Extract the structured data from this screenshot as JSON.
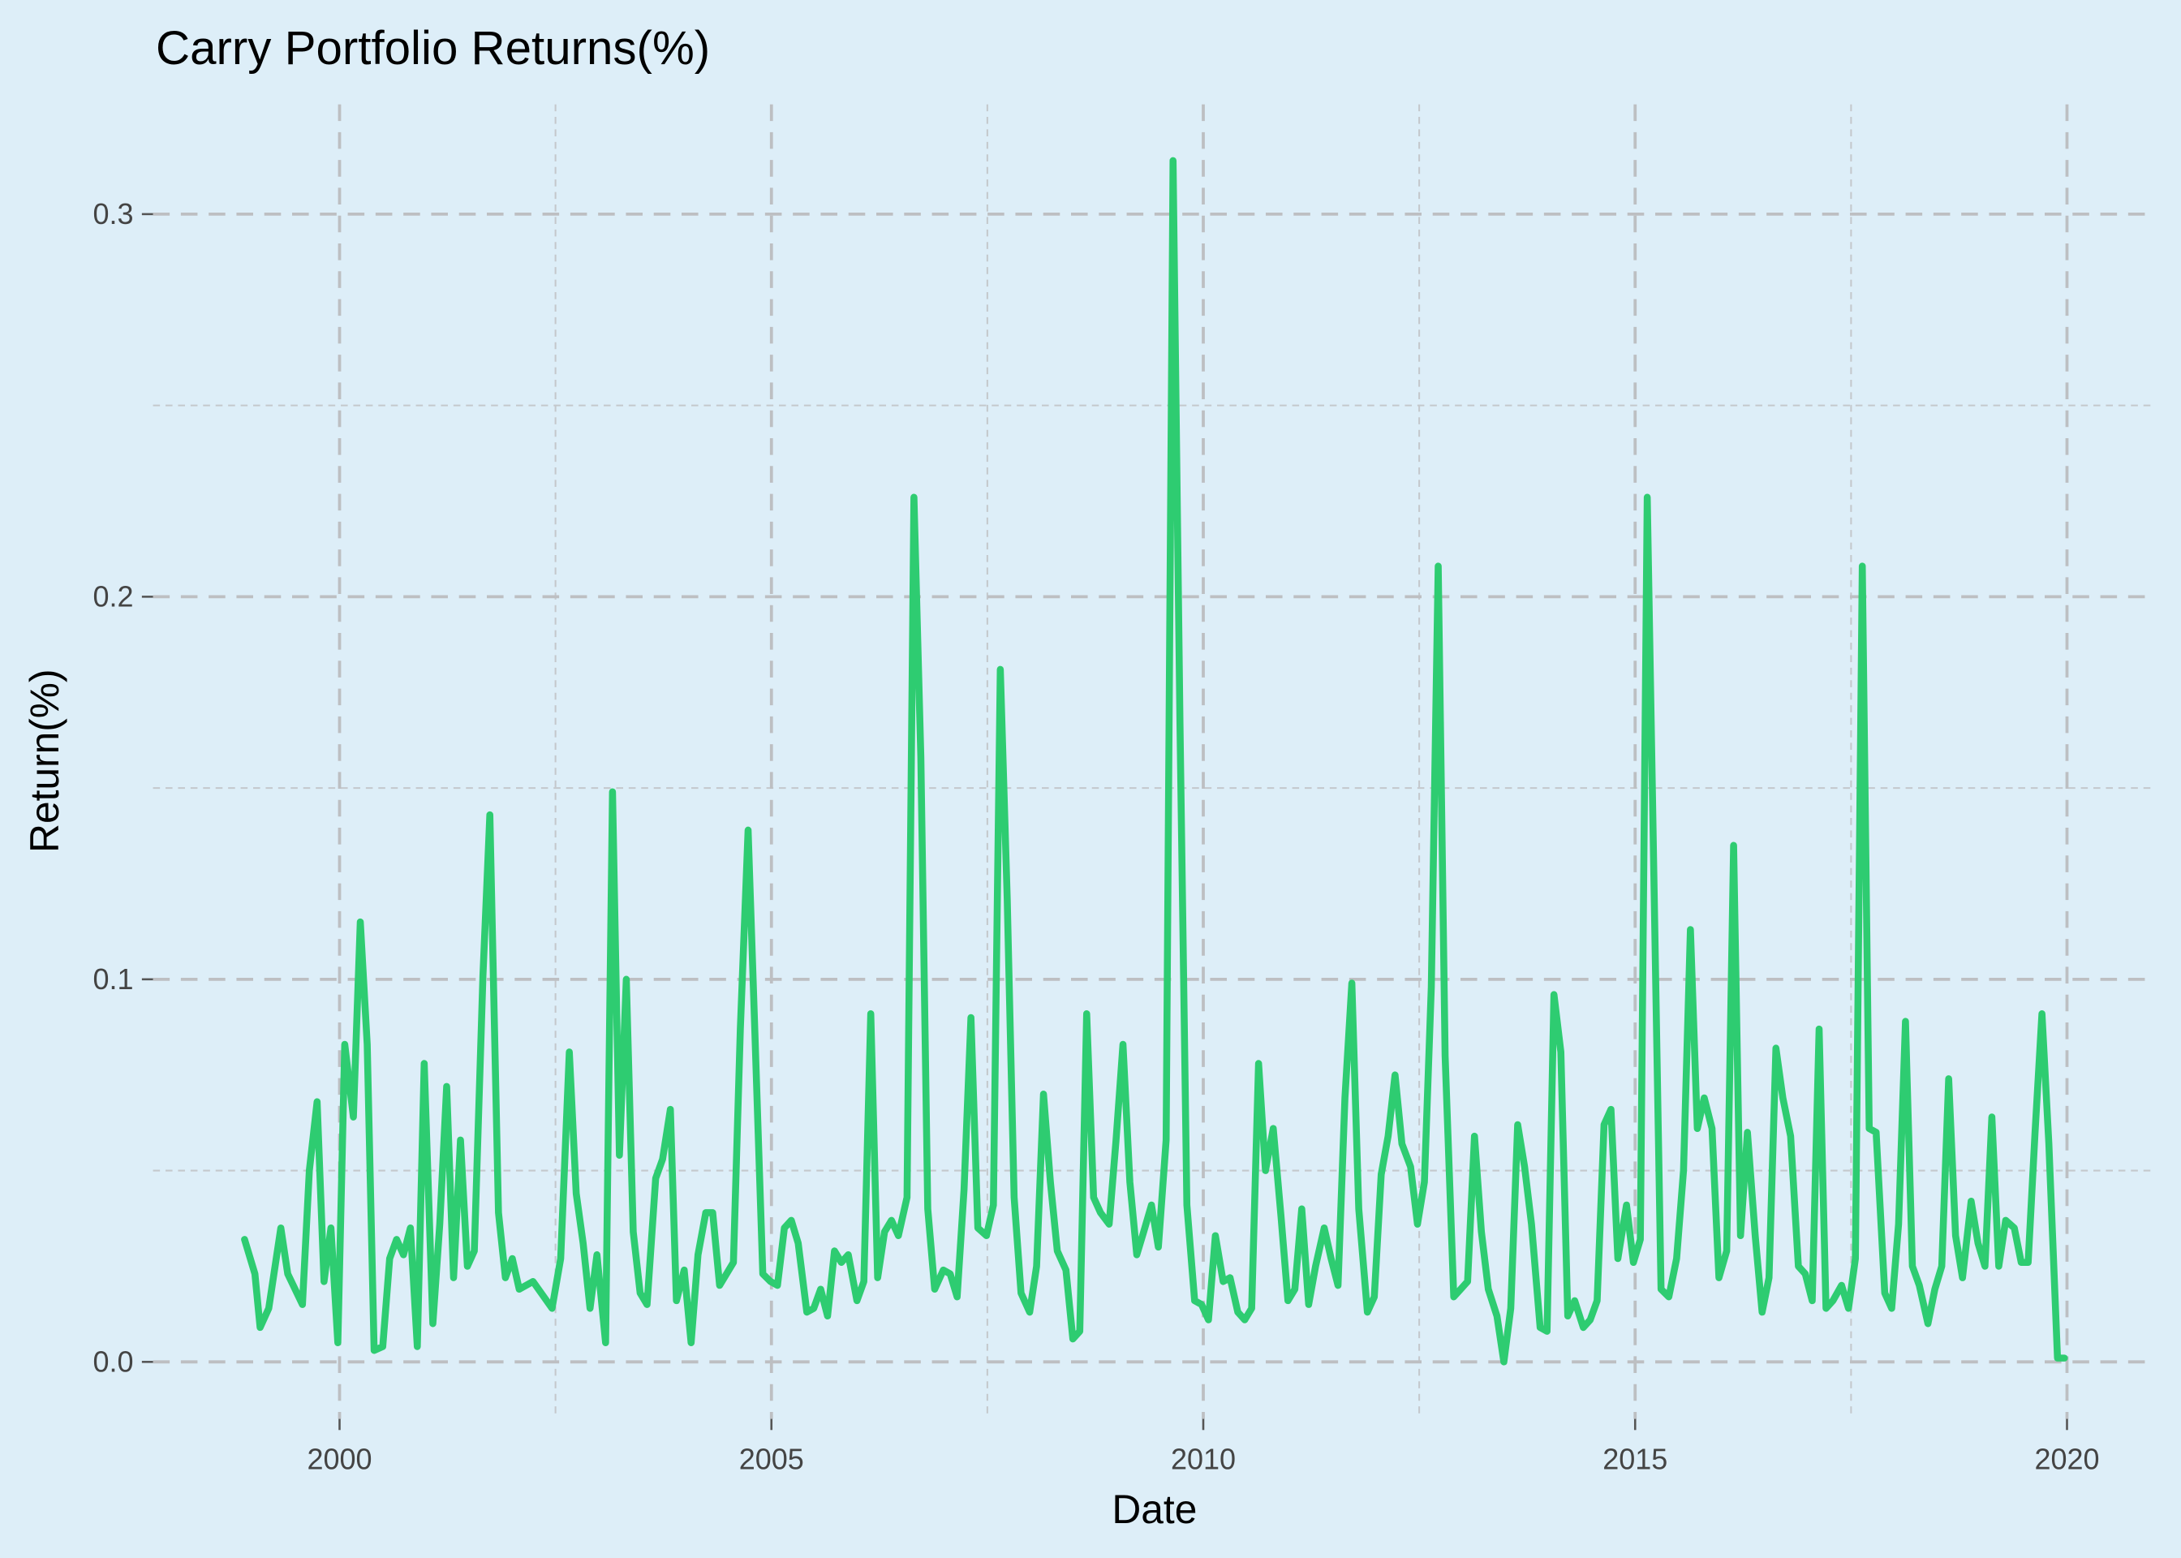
{
  "chart_data": {
    "type": "line",
    "title": "Carry Portfolio Returns(%)",
    "x_label": "Date",
    "y_label": "Return(%)",
    "xlim": [
      1997.84,
      2021.03
    ],
    "ylim": [
      -0.0149,
      0.3287
    ],
    "xticks": [
      2000,
      2005,
      2010,
      2015,
      2020
    ],
    "yticks": [
      {
        "value": 0,
        "label": "0.0"
      },
      0.1,
      0.2,
      0.3
    ],
    "grid": true,
    "x": [
      1998.9,
      1999.02,
      1999.08,
      1999.18,
      1999.32,
      1999.4,
      1999.57,
      1999.65,
      1999.74,
      1999.82,
      1999.9,
      1999.98,
      2000.06,
      2000.16,
      2000.24,
      2000.32,
      2000.4,
      2000.5,
      2000.58,
      2000.66,
      2000.74,
      2000.82,
      2000.9,
      2000.98,
      2001.08,
      2001.16,
      2001.24,
      2001.32,
      2001.4,
      2001.48,
      2001.56,
      2001.66,
      2001.74,
      2001.84,
      2001.92,
      2002.0,
      2002.08,
      2002.24,
      2002.46,
      2002.56,
      2002.66,
      2002.74,
      2002.82,
      2002.9,
      2002.98,
      2003.08,
      2003.16,
      2003.24,
      2003.32,
      2003.4,
      2003.48,
      2003.56,
      2003.66,
      2003.74,
      2003.83,
      2003.9,
      2003.99,
      2004.07,
      2004.15,
      2004.24,
      2004.32,
      2004.4,
      2004.56,
      2004.64,
      2004.73,
      2004.81,
      2004.9,
      2004.99,
      2005.07,
      2005.15,
      2005.23,
      2005.31,
      2005.41,
      2005.49,
      2005.57,
      2005.65,
      2005.73,
      2005.81,
      2005.89,
      2005.99,
      2006.07,
      2006.15,
      2006.23,
      2006.31,
      2006.39,
      2006.47,
      2006.57,
      2006.65,
      2006.73,
      2006.81,
      2006.89,
      2006.99,
      2007.07,
      2007.15,
      2007.23,
      2007.31,
      2007.39,
      2007.49,
      2007.57,
      2007.65,
      2007.73,
      2007.81,
      2007.89,
      2007.99,
      2008.07,
      2008.15,
      2008.23,
      2008.31,
      2008.41,
      2008.49,
      2008.57,
      2008.65,
      2008.73,
      2008.81,
      2008.91,
      2008.99,
      2009.07,
      2009.15,
      2009.23,
      2009.31,
      2009.4,
      2009.48,
      2009.57,
      2009.65,
      2009.73,
      2009.81,
      2009.9,
      2009.98,
      2010.06,
      2010.14,
      2010.23,
      2010.31,
      2010.4,
      2010.48,
      2010.56,
      2010.64,
      2010.72,
      2010.81,
      2010.9,
      2010.98,
      2011.06,
      2011.14,
      2011.22,
      2011.3,
      2011.4,
      2011.48,
      2011.56,
      2011.64,
      2011.72,
      2011.8,
      2011.9,
      2011.98,
      2012.06,
      2012.14,
      2012.22,
      2012.3,
      2012.4,
      2012.48,
      2012.56,
      2012.64,
      2012.72,
      2012.8,
      2012.9,
      2012.98,
      2013.06,
      2013.14,
      2013.22,
      2013.3,
      2013.4,
      2013.48,
      2013.56,
      2013.64,
      2013.72,
      2013.8,
      2013.9,
      2013.98,
      2014.06,
      2014.14,
      2014.22,
      2014.3,
      2014.4,
      2014.48,
      2014.56,
      2014.64,
      2014.72,
      2014.8,
      2014.9,
      2014.98,
      2015.06,
      2015.14,
      2015.22,
      2015.3,
      2015.39,
      2015.48,
      2015.56,
      2015.64,
      2015.72,
      2015.8,
      2015.89,
      2015.97,
      2016.06,
      2016.14,
      2016.22,
      2016.3,
      2016.39,
      2016.47,
      2016.55,
      2016.63,
      2016.71,
      2016.8,
      2016.89,
      2016.97,
      2017.05,
      2017.13,
      2017.21,
      2017.29,
      2017.39,
      2017.47,
      2017.55,
      2017.63,
      2017.71,
      2017.79,
      2017.89,
      2017.97,
      2018.05,
      2018.13,
      2018.21,
      2018.29,
      2018.39,
      2018.47,
      2018.55,
      2018.63,
      2018.71,
      2018.79,
      2018.89,
      2018.97,
      2019.05,
      2019.13,
      2019.21,
      2019.29,
      2019.39,
      2019.47,
      2019.55,
      2019.63,
      2019.71,
      2019.79,
      2019.89,
      2019.97
    ],
    "series": [
      {
        "color": "#2ecc71",
        "values": [
          0.032,
          0.023,
          0.009,
          0.014,
          0.035,
          0.023,
          0.015,
          0.05,
          0.068,
          0.021,
          0.035,
          0.005,
          0.083,
          0.064,
          0.115,
          0.083,
          0.003,
          0.004,
          0.027,
          0.032,
          0.028,
          0.035,
          0.004,
          0.078,
          0.01,
          0.036,
          0.072,
          0.022,
          0.058,
          0.025,
          0.029,
          0.101,
          0.143,
          0.039,
          0.022,
          0.027,
          0.019,
          0.021,
          0.014,
          0.027,
          0.081,
          0.044,
          0.031,
          0.014,
          0.028,
          0.005,
          0.149,
          0.054,
          0.1,
          0.034,
          0.018,
          0.015,
          0.048,
          0.053,
          0.066,
          0.016,
          0.024,
          0.005,
          0.028,
          0.039,
          0.039,
          0.02,
          0.026,
          0.087,
          0.139,
          0.085,
          0.023,
          0.021,
          0.02,
          0.035,
          0.037,
          0.031,
          0.013,
          0.014,
          0.019,
          0.012,
          0.029,
          0.026,
          0.028,
          0.016,
          0.021,
          0.091,
          0.022,
          0.034,
          0.037,
          0.033,
          0.043,
          0.226,
          0.158,
          0.04,
          0.019,
          0.024,
          0.023,
          0.017,
          0.045,
          0.09,
          0.035,
          0.033,
          0.041,
          0.181,
          0.121,
          0.043,
          0.018,
          0.013,
          0.025,
          0.07,
          0.047,
          0.029,
          0.024,
          0.006,
          0.008,
          0.091,
          0.043,
          0.039,
          0.036,
          0.058,
          0.083,
          0.047,
          0.028,
          0.034,
          0.041,
          0.03,
          0.058,
          0.314,
          0.167,
          0.041,
          0.016,
          0.015,
          0.011,
          0.033,
          0.021,
          0.022,
          0.013,
          0.011,
          0.014,
          0.078,
          0.05,
          0.061,
          0.038,
          0.016,
          0.019,
          0.04,
          0.015,
          0.025,
          0.035,
          0.027,
          0.02,
          0.069,
          0.099,
          0.04,
          0.013,
          0.017,
          0.049,
          0.059,
          0.075,
          0.057,
          0.051,
          0.036,
          0.047,
          0.098,
          0.208,
          0.08,
          0.017,
          0.019,
          0.021,
          0.059,
          0.034,
          0.019,
          0.012,
          0.0,
          0.014,
          0.062,
          0.051,
          0.036,
          0.009,
          0.008,
          0.096,
          0.081,
          0.012,
          0.016,
          0.009,
          0.011,
          0.016,
          0.062,
          0.066,
          0.027,
          0.041,
          0.026,
          0.032,
          0.226,
          0.123,
          0.019,
          0.017,
          0.027,
          0.05,
          0.113,
          0.061,
          0.069,
          0.061,
          0.022,
          0.029,
          0.135,
          0.033,
          0.06,
          0.033,
          0.013,
          0.022,
          0.082,
          0.069,
          0.059,
          0.025,
          0.023,
          0.016,
          0.087,
          0.014,
          0.016,
          0.02,
          0.014,
          0.027,
          0.208,
          0.061,
          0.06,
          0.018,
          0.014,
          0.036,
          0.089,
          0.025,
          0.02,
          0.01,
          0.019,
          0.025,
          0.074,
          0.033,
          0.022,
          0.042,
          0.031,
          0.025,
          0.064,
          0.025,
          0.037,
          0.035,
          0.026,
          0.026,
          0.06,
          0.091,
          0.057,
          0.001,
          0.001
        ]
      }
    ]
  }
}
